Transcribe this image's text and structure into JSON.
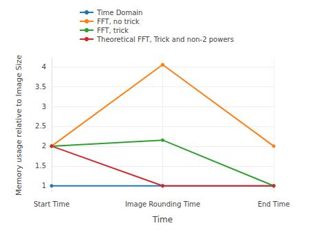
{
  "chart_data": {
    "type": "line",
    "categories": [
      "Start Time",
      "Image Rounding Time",
      "End Time"
    ],
    "x_label": "Time",
    "y_label": "Memory usage relative to Image Size",
    "ylim": [
      0.84,
      4.21
    ],
    "yticks": [
      1,
      1.5,
      2,
      2.5,
      3,
      3.5,
      4
    ],
    "grid": true,
    "legend": "top-left",
    "marker": "circle",
    "series": [
      {
        "name": "Time Domain",
        "color": "#1f77b4",
        "values": [
          1,
          1,
          1
        ]
      },
      {
        "name": "FFT, no trick",
        "color": "#ff7f0e",
        "values": [
          2,
          4.05,
          2
        ]
      },
      {
        "name": "FFT, trick",
        "color": "#2ca02c",
        "values": [
          2,
          2.15,
          1
        ]
      },
      {
        "name": "Theoretical FFT, Trick and non-2 powers",
        "color": "#d62728",
        "values": [
          2,
          1,
          1
        ]
      }
    ]
  }
}
